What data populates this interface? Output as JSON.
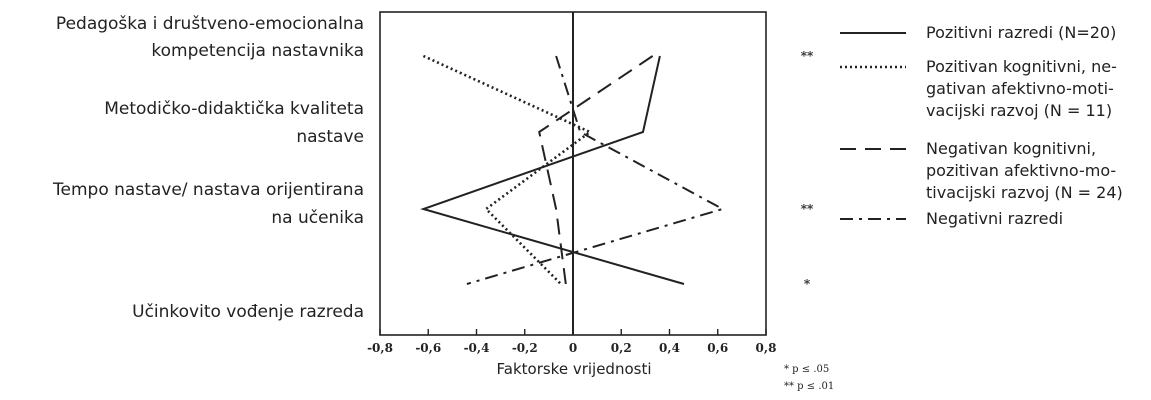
{
  "chart_data": {
    "type": "line",
    "orientation": "horizontal-profile",
    "categories": [
      [
        "Pedagoška i društveno-emocionalna",
        "kompetencija nastavnika"
      ],
      [
        "Metodičko-didaktička kvaliteta",
        "nastave"
      ],
      [
        "Tempo nastave/ nastava orijentirana",
        "na učenika"
      ],
      [
        "Učinkovito vođenje razreda"
      ]
    ],
    "xlabel": "Faktorske vrijednosti",
    "xlim": [
      -0.8,
      0.8
    ],
    "xticks": [
      "-0,8",
      "-0,6",
      "-0,4",
      "-0,2",
      "0",
      "0,2",
      "0,4",
      "0,6",
      "0,8"
    ],
    "series": [
      {
        "name": "Pozitivni razredi (N=20)",
        "style": "solid",
        "values": [
          0.36,
          0.29,
          -0.62,
          0.46
        ]
      },
      {
        "name": "Pozitivan kognitivni, ne-gativan afektivno-moti-vacijski razvoj (N = 11)",
        "style": "dotted",
        "values": [
          -0.62,
          0.07,
          -0.36,
          -0.05
        ]
      },
      {
        "name": "Negativan kognitivni, pozitivan afektivno-mo-tivacijski razvoj (N = 24)",
        "style": "dashed",
        "values": [
          0.33,
          -0.14,
          -0.07,
          -0.03
        ]
      },
      {
        "name": "Negativni razredi",
        "style": "dashdot",
        "values": [
          -0.07,
          0.03,
          0.62,
          -0.44
        ]
      }
    ],
    "significance_marks": [
      "**",
      "",
      "**",
      "*"
    ],
    "notes": [
      "* p ≤ .05",
      "** p ≤ .01"
    ],
    "grid": false,
    "legend_placement": "right"
  },
  "legend": [
    [
      "Pozitivni razredi (N=20)"
    ],
    [
      "Pozitivan kognitivni, ne-",
      "gativan afektivno-moti-",
      "vacijski razvoj (N = 11)"
    ],
    [
      "Negativan kognitivni,",
      "pozitivan afektivno-mo-",
      "tivacijski razvoj (N = 24)"
    ],
    [
      "Negativni razredi"
    ]
  ]
}
